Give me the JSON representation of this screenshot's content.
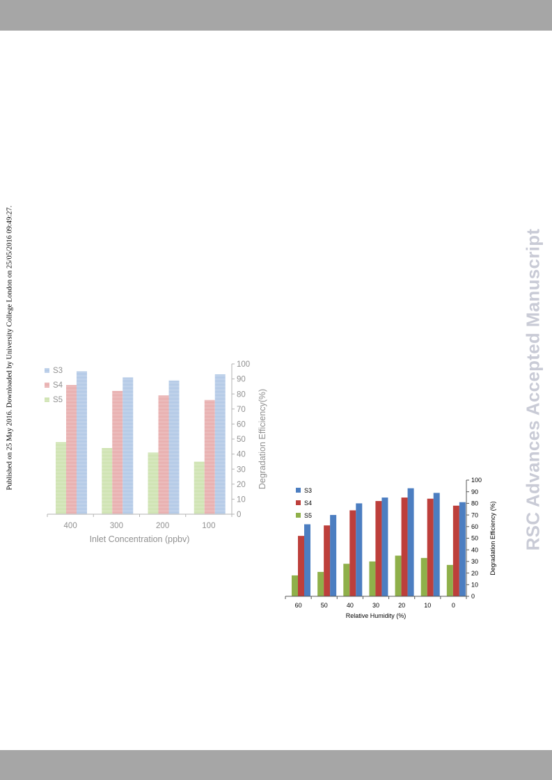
{
  "side_note": "Published on 25 May 2016. Downloaded by University College London on 25/05/2016 09:49:27.",
  "watermark": "RSC Advances Accepted Manuscript",
  "chart_data": [
    {
      "type": "bar",
      "categories": [
        "400",
        "300",
        "200",
        "100"
      ],
      "series": [
        {
          "name": "S5",
          "color": "#c6dea4",
          "values": [
            48,
            44,
            41,
            35
          ]
        },
        {
          "name": "S4",
          "color": "#e4a1a1",
          "values": [
            86,
            82,
            79,
            76
          ]
        },
        {
          "name": "S3",
          "color": "#a6c0e2",
          "values": [
            95,
            91,
            89,
            93
          ]
        }
      ],
      "legend_order": [
        "S3",
        "S4",
        "S5"
      ],
      "xlabel": "Inlet Concentration (ppbv)",
      "ylabel": "Degradation  Efficiency(%)",
      "ylim": [
        0,
        100
      ],
      "yticks": [
        "0",
        "10",
        "20",
        "30",
        "40",
        "50",
        "60",
        "70",
        "80",
        "90",
        "100"
      ],
      "axis_side": "right",
      "legend_position": "top-left"
    },
    {
      "type": "bar",
      "categories": [
        "60",
        "50",
        "40",
        "30",
        "20",
        "10",
        "0"
      ],
      "series": [
        {
          "name": "S5",
          "color": "#8fb04a",
          "values": [
            18,
            21,
            28,
            30,
            35,
            33,
            27
          ]
        },
        {
          "name": "S4",
          "color": "#bd3f3b",
          "values": [
            52,
            61,
            74,
            82,
            85,
            84,
            78
          ]
        },
        {
          "name": "S3",
          "color": "#4c7ec1",
          "values": [
            62,
            70,
            80,
            85,
            93,
            89,
            81
          ]
        }
      ],
      "legend_order": [
        "S3",
        "S4",
        "S5"
      ],
      "xlabel": "Relative Humidity (%)",
      "ylabel": "Degradation Efficiency (%)",
      "ylim": [
        0,
        100
      ],
      "yticks": [
        "0",
        "10",
        "20",
        "30",
        "40",
        "50",
        "60",
        "70",
        "80",
        "90",
        "100"
      ],
      "axis_side": "right",
      "legend_position": "top-left"
    }
  ]
}
